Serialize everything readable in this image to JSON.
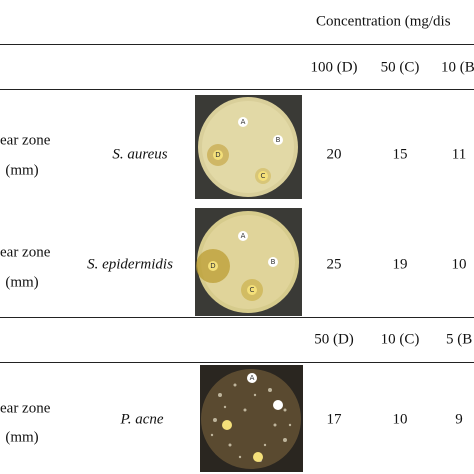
{
  "header": {
    "title": "Concentration (mg/dis",
    "columns_1": [
      "100 (D)",
      "50 (C)",
      "10 (B"
    ],
    "columns_2": [
      "50 (D)",
      "10 (C)",
      "5 (B"
    ]
  },
  "rows": [
    {
      "label": [
        "ear zone",
        "(mm)"
      ],
      "species": "S. aureus",
      "dish_labels": [
        "A",
        "B",
        "C",
        "D"
      ],
      "values": [
        20,
        15,
        11
      ]
    },
    {
      "label": [
        "ear zone",
        "(mm)"
      ],
      "species": "S. epidermidis",
      "dish_labels": [
        "A",
        "B",
        "C",
        "D"
      ],
      "values": [
        25,
        19,
        10
      ]
    },
    {
      "label": [
        "ear zone",
        "(mm)"
      ],
      "species": "P. acne",
      "dish_labels": [
        "A"
      ],
      "values": [
        17,
        10,
        9
      ]
    }
  ]
}
